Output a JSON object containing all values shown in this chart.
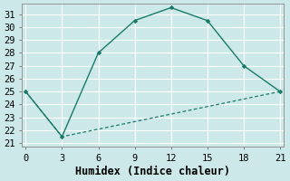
{
  "xlabel": "Humidex (Indice chaleur)",
  "bg_color": "#cce8e8",
  "grid_color": "#b0d8d8",
  "line_color": "#1a7a6a",
  "line1_x": [
    0,
    3,
    6,
    9,
    12,
    15,
    18,
    21
  ],
  "line1_y": [
    25,
    21.5,
    28,
    30.5,
    31.5,
    30.5,
    27,
    25
  ],
  "line2_x": [
    0,
    3,
    21
  ],
  "line2_y": [
    25,
    21.5,
    25
  ],
  "xlim": [
    -0.3,
    21.3
  ],
  "ylim": [
    20.7,
    31.8
  ],
  "xticks": [
    0,
    3,
    6,
    9,
    12,
    15,
    18,
    21
  ],
  "yticks": [
    21,
    22,
    23,
    24,
    25,
    26,
    27,
    28,
    29,
    30,
    31
  ],
  "font_size": 7.5,
  "xlabel_fontsize": 8.5
}
